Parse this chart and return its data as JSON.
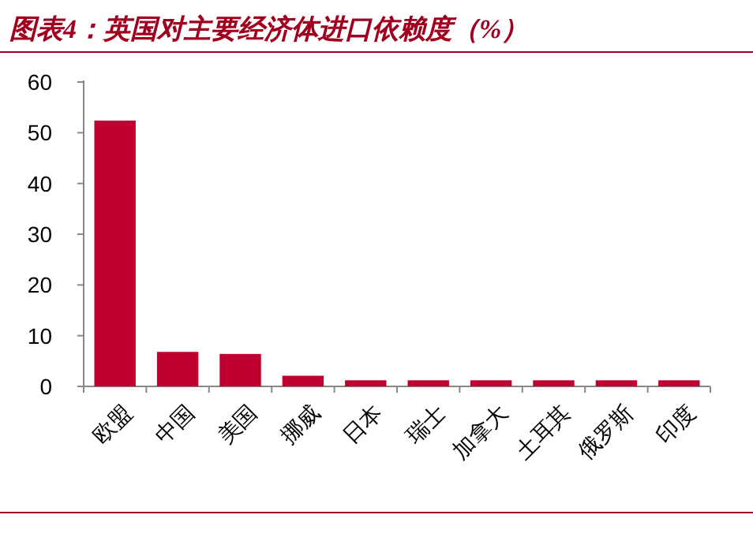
{
  "chart_data": {
    "type": "bar",
    "title": "图表4：英国对主要经济体进口依赖度（%）",
    "categories": [
      "欧盟",
      "中国",
      "美国",
      "挪威",
      "日本",
      "瑞士",
      "加拿大",
      "土耳其",
      "俄罗斯",
      "印度"
    ],
    "values": [
      52.4,
      6.8,
      6.4,
      2.1,
      1.2,
      1.2,
      1.2,
      1.2,
      1.2,
      1.2
    ],
    "color": "#c00030",
    "ylim": [
      0,
      60
    ],
    "yticks": [
      0,
      10,
      20,
      30,
      40,
      50,
      60
    ]
  }
}
